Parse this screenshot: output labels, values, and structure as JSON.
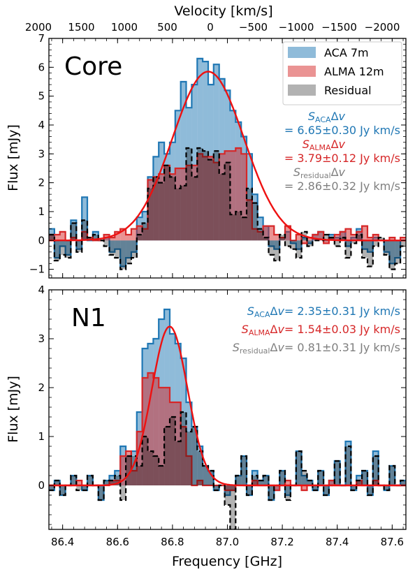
{
  "colors": {
    "aca": "#1f77b4",
    "alma": "#d62728",
    "residual": "#000000",
    "fit": "#ee1111",
    "residual_text": "#7f7f7f"
  },
  "shared": {
    "xlabel": "Frequency [GHz]",
    "top_xlabel": "Velocity [km/s]",
    "xlim": [
      86.35,
      87.65
    ],
    "x_ticks": [
      "86.4",
      "86.6",
      "86.8",
      "87.0",
      "87.2",
      "87.4",
      "87.6"
    ],
    "velocity_ticks": [
      "2000",
      "1500",
      "1000",
      "500",
      "0",
      "−500",
      "−1000",
      "−1500",
      "−2000"
    ]
  },
  "legend": {
    "aca": "ACA 7m",
    "alma": "ALMA 12m",
    "residual": "Residual"
  },
  "chart_data": [
    {
      "type": "step",
      "panel": "Core",
      "title": "Core",
      "ylabel": "Flux [mJy]",
      "ylim": [
        -1.3,
        7
      ],
      "y_ticks": [
        "−1",
        "0",
        "1",
        "2",
        "3",
        "4",
        "5",
        "6",
        "7"
      ],
      "annotations": [
        {
          "series": "ACA",
          "label": "S_ACA Δv",
          "value": "= 6.65±0.30 Jy km/s"
        },
        {
          "series": "ALMA",
          "label": "S_ALMA Δv",
          "value": "= 3.79±0.12 Jy km/s"
        },
        {
          "series": "Residual",
          "label": "S_residual Δv",
          "value": "= 2.86±0.32 Jy km/s"
        }
      ],
      "x": [
        86.36,
        86.38,
        86.4,
        86.42,
        86.44,
        86.46,
        86.48,
        86.5,
        86.52,
        86.54,
        86.56,
        86.58,
        86.6,
        86.62,
        86.64,
        86.66,
        86.68,
        86.7,
        86.72,
        86.74,
        86.76,
        86.78,
        86.8,
        86.82,
        86.84,
        86.86,
        86.88,
        86.9,
        86.92,
        86.94,
        86.96,
        86.98,
        87.0,
        87.02,
        87.04,
        87.06,
        87.08,
        87.1,
        87.12,
        87.14,
        87.16,
        87.18,
        87.2,
        87.22,
        87.24,
        87.26,
        87.28,
        87.3,
        87.32,
        87.34,
        87.36,
        87.38,
        87.4,
        87.42,
        87.44,
        87.46,
        87.48,
        87.5,
        87.52,
        87.54,
        87.56,
        87.58,
        87.6,
        87.62,
        87.64
      ],
      "series": [
        {
          "name": "ACA 7m",
          "values": [
            0.4,
            -0.6,
            -0.2,
            -0.5,
            0.7,
            -0.3,
            1.5,
            0.0,
            0.3,
            0.0,
            0.1,
            -0.4,
            -0.3,
            -0.9,
            -0.6,
            -0.4,
            0.8,
            1.0,
            2.2,
            2.9,
            3.4,
            3.0,
            3.4,
            4.5,
            5.5,
            4.6,
            5.4,
            6.3,
            6.2,
            5.4,
            6.1,
            5.6,
            5.2,
            4.5,
            4.1,
            3.6,
            3.0,
            1.6,
            0.8,
            0.5,
            -0.2,
            -0.3,
            0.1,
            0.3,
            -0.1,
            -0.3,
            0.1,
            -0.1,
            0.2,
            0.3,
            0.0,
            0.2,
            0.1,
            0.3,
            -0.2,
            0.1,
            0.4,
            -0.3,
            -0.4,
            0.1,
            0.0,
            -0.4,
            -0.8,
            -0.6,
            0.0
          ]
        },
        {
          "name": "ALMA 12m",
          "values": [
            0.2,
            0.2,
            0.3,
            0.0,
            0.1,
            0.0,
            0.3,
            0.1,
            0.0,
            0.0,
            0.2,
            0.1,
            0.3,
            0.4,
            0.2,
            0.4,
            0.5,
            0.4,
            2.1,
            2.2,
            2.3,
            2.6,
            2.3,
            2.5,
            2.5,
            2.6,
            2.6,
            3.0,
            2.9,
            2.9,
            2.7,
            3.0,
            3.1,
            3.1,
            3.2,
            3.0,
            1.4,
            0.4,
            0.3,
            0.5,
            0.5,
            0.2,
            0.1,
            0.5,
            0.0,
            0.2,
            -0.1,
            0.1,
            0.2,
            0.3,
            -0.1,
            0.1,
            0.2,
            0.3,
            0.4,
            0.2,
            0.3,
            0.5,
            0.1,
            0.2,
            0.0,
            0.0,
            0.1,
            0.0,
            0.1
          ]
        },
        {
          "name": "Residual",
          "values": [
            0.2,
            -0.7,
            -0.5,
            -0.6,
            0.6,
            -0.4,
            0.7,
            0.1,
            0.2,
            0.0,
            -0.2,
            -0.5,
            -0.6,
            -1.0,
            -0.8,
            -0.6,
            0.2,
            0.6,
            1.8,
            2.2,
            2.0,
            2.6,
            2.2,
            1.8,
            1.9,
            3.2,
            2.2,
            3.2,
            3.1,
            2.8,
            3.1,
            2.3,
            2.7,
            0.9,
            1.0,
            0.8,
            1.8,
            1.3,
            0.4,
            0.1,
            -0.5,
            -0.7,
            0.2,
            -0.2,
            -0.3,
            -0.6,
            0.3,
            -0.2,
            0.0,
            0.0,
            0.2,
            0.1,
            -0.2,
            0.1,
            -0.6,
            -0.1,
            0.2,
            -0.6,
            -0.9,
            -0.2,
            0.1,
            -0.5,
            -1.0,
            -0.8,
            -0.2
          ]
        }
      ],
      "fit": {
        "name": "Gaussian fit",
        "amplitude": 5.85,
        "center": 86.93,
        "sigma": 0.13
      }
    },
    {
      "type": "step",
      "panel": "N1",
      "title": "N1",
      "ylabel": "Flux [mJy]",
      "ylim": [
        -0.9,
        4
      ],
      "y_ticks": [
        "0",
        "1",
        "2",
        "3",
        "4"
      ],
      "annotations": [
        {
          "series": "ACA",
          "label": "S_ACA Δv",
          "value": "= 2.35±0.31 Jy km/s"
        },
        {
          "series": "ALMA",
          "label": "S_ALMA Δv",
          "value": "= 1.54±0.03 Jy km/s"
        },
        {
          "series": "Residual",
          "label": "S_residual Δv",
          "value": "= 0.81±0.31 Jy km/s"
        }
      ],
      "x": [
        86.36,
        86.38,
        86.4,
        86.42,
        86.44,
        86.46,
        86.48,
        86.5,
        86.52,
        86.54,
        86.56,
        86.58,
        86.6,
        86.62,
        86.64,
        86.66,
        86.68,
        86.7,
        86.72,
        86.74,
        86.76,
        86.78,
        86.8,
        86.82,
        86.84,
        86.86,
        86.88,
        86.9,
        86.92,
        86.94,
        86.96,
        86.98,
        87.0,
        87.02,
        87.04,
        87.06,
        87.08,
        87.1,
        87.12,
        87.14,
        87.16,
        87.18,
        87.2,
        87.22,
        87.24,
        87.26,
        87.28,
        87.3,
        87.32,
        87.34,
        87.36,
        87.38,
        87.4,
        87.42,
        87.44,
        87.46,
        87.48,
        87.5,
        87.52,
        87.54,
        87.56,
        87.58,
        87.6,
        87.62,
        87.64
      ],
      "series": [
        {
          "name": "ACA 7m",
          "values": [
            -0.1,
            0.1,
            -0.2,
            0.0,
            0.2,
            0.0,
            -0.1,
            0.2,
            0.0,
            -0.3,
            0.1,
            0.2,
            0.3,
            0.8,
            0.6,
            0.7,
            1.5,
            2.8,
            2.9,
            3.0,
            3.4,
            3.6,
            3.1,
            2.9,
            2.6,
            1.7,
            1.2,
            0.8,
            0.4,
            0.3,
            -0.1,
            0.0,
            -0.2,
            -0.1,
            0.2,
            0.6,
            -0.2,
            0.3,
            0.1,
            0.2,
            -0.3,
            -0.1,
            0.3,
            -0.2,
            0.0,
            0.7,
            0.2,
            0.1,
            -0.1,
            0.3,
            -0.2,
            0.1,
            0.5,
            0.0,
            0.9,
            -0.1,
            0.2,
            0.3,
            -0.2,
            0.7,
            0.0,
            -0.1,
            0.4,
            0.0,
            0.1
          ]
        },
        {
          "name": "ALMA 12m",
          "values": [
            0.0,
            0.0,
            0.0,
            0.0,
            0.0,
            0.1,
            0.0,
            0.0,
            0.0,
            0.0,
            0.0,
            0.1,
            0.1,
            0.6,
            0.7,
            0.3,
            1.1,
            2.2,
            2.3,
            2.2,
            2.0,
            2.0,
            1.7,
            1.7,
            1.2,
            0.6,
            0.0,
            0.1,
            0.0,
            0.0,
            0.0,
            0.0,
            -0.1,
            -0.1,
            0.0,
            0.0,
            0.0,
            0.1,
            0.0,
            0.0,
            0.0,
            -0.1,
            0.0,
            0.1,
            0.0,
            0.0,
            -0.1,
            0.0,
            0.0,
            0.0,
            0.0,
            0.1,
            0.0,
            0.0,
            0.0,
            0.0,
            0.1,
            0.0,
            0.0,
            0.1,
            0.0,
            0.0,
            0.0,
            0.0,
            0.0
          ]
        },
        {
          "name": "Residual",
          "values": [
            -0.1,
            0.1,
            -0.2,
            0.0,
            0.2,
            -0.1,
            -0.1,
            0.2,
            0.0,
            -0.3,
            0.1,
            0.1,
            0.2,
            -0.3,
            0.6,
            0.6,
            0.4,
            1.0,
            0.7,
            0.6,
            0.4,
            1.2,
            1.4,
            0.9,
            1.5,
            1.1,
            1.2,
            0.7,
            0.4,
            0.3,
            -0.1,
            0.0,
            -0.4,
            -0.9,
            0.2,
            0.6,
            -0.2,
            0.2,
            0.1,
            0.2,
            -0.3,
            0.0,
            0.3,
            -0.3,
            0.0,
            0.7,
            0.3,
            0.1,
            -0.1,
            0.3,
            -0.2,
            0.0,
            0.5,
            0.0,
            0.8,
            -0.1,
            0.1,
            0.3,
            -0.2,
            0.6,
            0.0,
            -0.1,
            0.4,
            0.0,
            0.1
          ]
        }
      ],
      "fit": {
        "name": "Gaussian fit",
        "amplitude": 3.25,
        "center": 86.79,
        "sigma": 0.065
      }
    }
  ]
}
